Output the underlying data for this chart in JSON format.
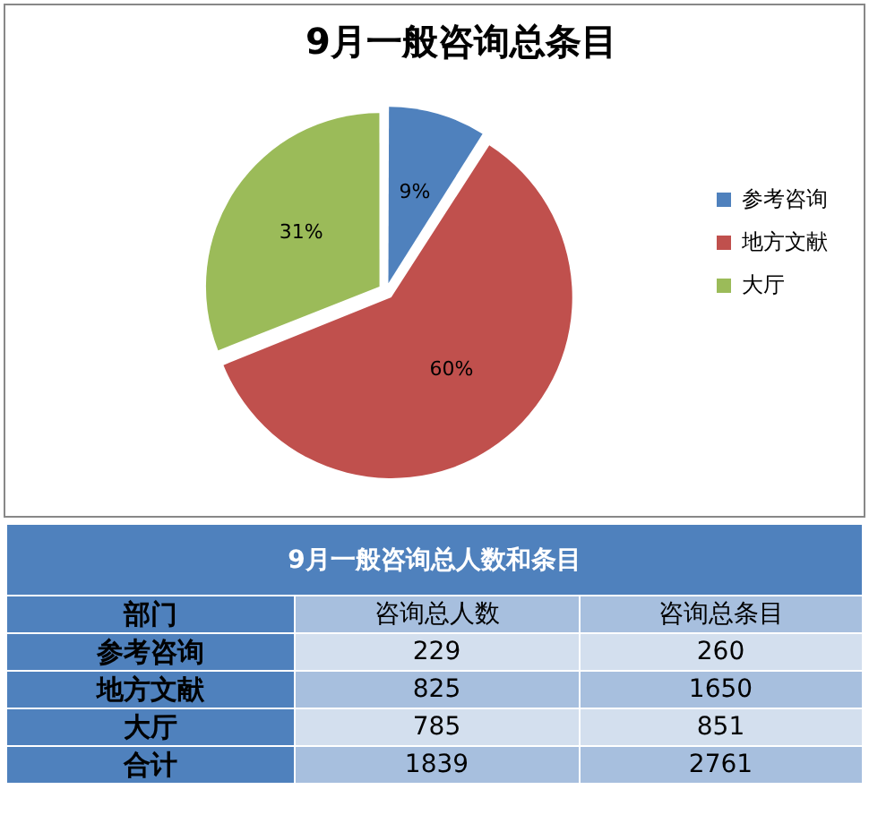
{
  "chart_data": [
    {
      "type": "pie",
      "title": "9月一般咨询总条目",
      "categories": [
        "参考咨询",
        "地方文献",
        "大厅"
      ],
      "values": [
        9,
        60,
        31
      ],
      "colors": [
        "#4f81bd",
        "#c0504d",
        "#9bbb59"
      ],
      "value_labels": [
        "9%",
        "60%",
        "31%"
      ],
      "legend": "right"
    },
    {
      "type": "other",
      "title": "9月一般咨询总人数和条目",
      "xlabel": "部门",
      "categories": [
        "参考咨询",
        "地方文献",
        "大厅",
        "合计"
      ],
      "series": [
        {
          "name": "咨询总人数",
          "values": [
            229,
            825,
            785,
            1839
          ],
          "colors": [
            "#d3dfee",
            "#a7bfde",
            "#d3dfee",
            "#a7bfde"
          ]
        },
        {
          "name": "咨询总条目",
          "values": [
            260,
            1650,
            851,
            2761
          ],
          "colors": [
            "#d3dfee",
            "#a7bfde",
            "#d3dfee",
            "#a7bfde"
          ]
        }
      ],
      "data_labels": true
    }
  ]
}
